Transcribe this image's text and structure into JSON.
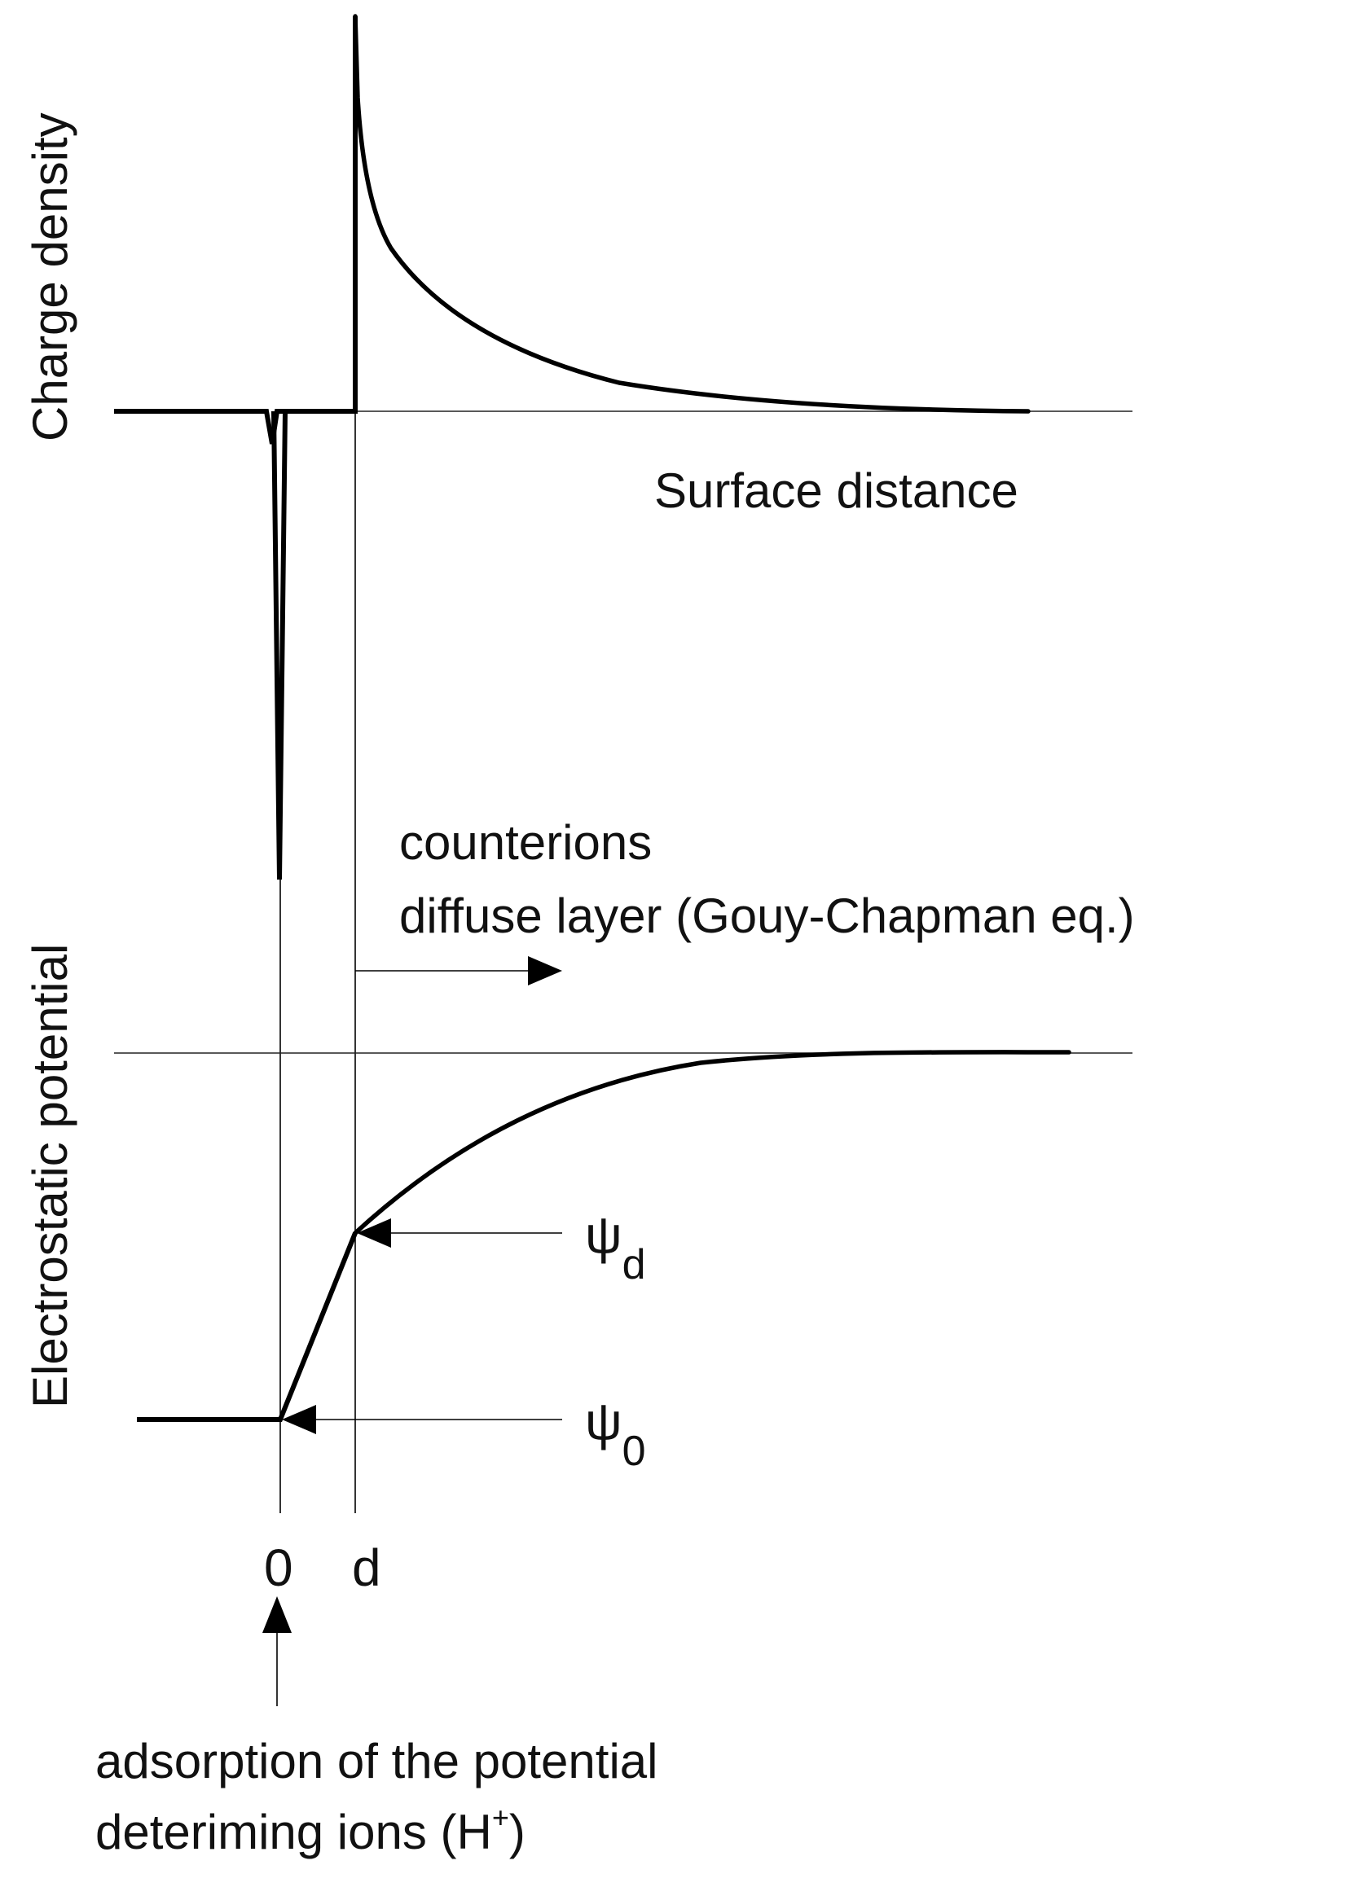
{
  "labels": {
    "charge_density_axis": "Charge density",
    "surface_distance_axis": "Surface distance",
    "electrostatic_potential_axis": "Electrostatic potential",
    "counterions_line1": "counterions",
    "counterions_line2": "diffuse layer (Gouy-Chapman eq.)",
    "psi_d_symbol": "ψ",
    "psi_d_subscript": "d",
    "psi_0_symbol": "ψ",
    "psi_0_subscript": "0",
    "tick_zero": "0",
    "tick_d": "d",
    "adsorption_line1": "adsorption of the potential",
    "adsorption_line2_prefix": "deteriming ions (H",
    "adsorption_line2_superscript": "+",
    "adsorption_line2_suffix": ")"
  }
}
